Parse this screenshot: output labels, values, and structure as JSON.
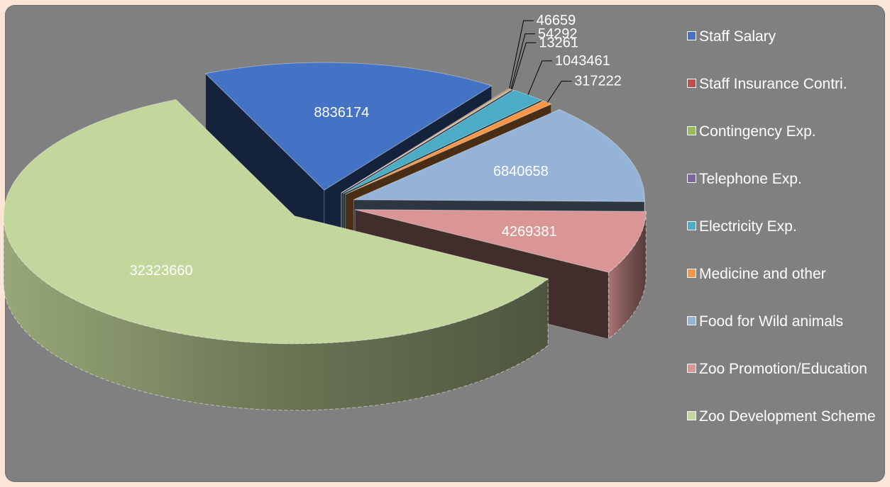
{
  "chart_data": {
    "type": "pie",
    "variant": "3d-exploded",
    "title": "",
    "legend_position": "right",
    "slices": [
      {
        "label": "Staff Salary",
        "value": 8836174,
        "value_label": "8836174",
        "color": "#4472c4"
      },
      {
        "label": "Staff Insurance Contri.",
        "value": 46659,
        "value_label": "46659",
        "color": "#c0504d"
      },
      {
        "label": "Contingency Exp.",
        "value": 54292,
        "value_label": "54292",
        "color": "#9bbb59"
      },
      {
        "label": "Telephone Exp.",
        "value": 13261,
        "value_label": "13261",
        "color": "#8064a2"
      },
      {
        "label": "Electricity Exp.",
        "value": 1043461,
        "value_label": "1043461",
        "color": "#4bacc6"
      },
      {
        "label": "Medicine and other",
        "value": 317222,
        "value_label": "317222",
        "color": "#f79646"
      },
      {
        "label": "Food for Wild animals",
        "value": 6840658,
        "value_label": "6840658",
        "color": "#95b3d7"
      },
      {
        "label": "Zoo Promotion/Education",
        "value": 4269381,
        "value_label": "4269381",
        "color": "#d99694"
      },
      {
        "label": "Zoo Development Scheme",
        "value": 32323660,
        "value_label": "32323660",
        "color": "#c3d69b"
      }
    ]
  }
}
